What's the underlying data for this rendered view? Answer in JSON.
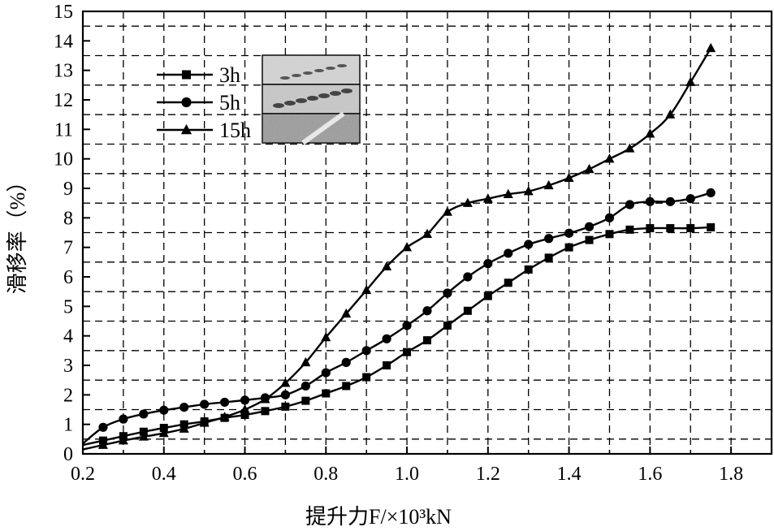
{
  "chart_data": {
    "type": "line",
    "xlabel": "提升力F/×10³kN",
    "ylabel": "滑移率（%）",
    "xlim": [
      0.2,
      1.9
    ],
    "ylim": [
      0,
      15
    ],
    "xticks": [
      "0.2",
      "0.4",
      "0.6",
      "0.8",
      "1.0",
      "1.2",
      "1.4",
      "1.6",
      "1.8"
    ],
    "yticks": [
      "0",
      "1",
      "2",
      "3",
      "4",
      "5",
      "6",
      "7",
      "8",
      "9",
      "10",
      "11",
      "12",
      "13",
      "14",
      "15"
    ],
    "grid": true,
    "grid_style": "dashed",
    "legend_position": "top-left",
    "series": [
      {
        "name": "3h",
        "marker": "square",
        "x": [
          0.2,
          0.25,
          0.3,
          0.35,
          0.4,
          0.45,
          0.5,
          0.55,
          0.6,
          0.65,
          0.7,
          0.75,
          0.8,
          0.85,
          0.9,
          0.95,
          1.0,
          1.05,
          1.1,
          1.15,
          1.2,
          1.25,
          1.3,
          1.35,
          1.4,
          1.45,
          1.5,
          1.55,
          1.6,
          1.65,
          1.7,
          1.75
        ],
        "y": [
          0.3,
          0.45,
          0.6,
          0.75,
          0.88,
          1.0,
          1.1,
          1.22,
          1.32,
          1.45,
          1.6,
          1.8,
          2.05,
          2.3,
          2.6,
          3.0,
          3.45,
          3.85,
          4.35,
          4.85,
          5.35,
          5.8,
          6.25,
          6.65,
          7.0,
          7.25,
          7.45,
          7.6,
          7.65,
          7.65,
          7.65,
          7.68
        ]
      },
      {
        "name": "5h",
        "marker": "circle",
        "x": [
          0.2,
          0.25,
          0.3,
          0.35,
          0.4,
          0.45,
          0.5,
          0.55,
          0.6,
          0.65,
          0.7,
          0.75,
          0.8,
          0.85,
          0.9,
          0.95,
          1.0,
          1.05,
          1.1,
          1.15,
          1.2,
          1.25,
          1.3,
          1.35,
          1.4,
          1.45,
          1.5,
          1.55,
          1.6,
          1.65,
          1.7,
          1.75
        ],
        "y": [
          0.35,
          0.9,
          1.18,
          1.35,
          1.48,
          1.58,
          1.68,
          1.75,
          1.82,
          1.9,
          2.0,
          2.3,
          2.75,
          3.1,
          3.5,
          3.9,
          4.35,
          4.85,
          5.45,
          6.0,
          6.45,
          6.8,
          7.1,
          7.3,
          7.48,
          7.7,
          8.0,
          8.45,
          8.55,
          8.55,
          8.65,
          8.85
        ]
      },
      {
        "name": "15h",
        "marker": "triangle",
        "x": [
          0.2,
          0.25,
          0.3,
          0.35,
          0.4,
          0.45,
          0.5,
          0.55,
          0.6,
          0.65,
          0.7,
          0.75,
          0.8,
          0.85,
          0.9,
          0.95,
          1.0,
          1.05,
          1.1,
          1.15,
          1.2,
          1.25,
          1.3,
          1.35,
          1.4,
          1.45,
          1.5,
          1.55,
          1.6,
          1.65,
          1.7,
          1.75
        ],
        "y": [
          0.15,
          0.3,
          0.45,
          0.58,
          0.7,
          0.85,
          1.05,
          1.25,
          1.5,
          1.85,
          2.4,
          3.1,
          3.95,
          4.75,
          5.55,
          6.35,
          7.0,
          7.45,
          8.2,
          8.5,
          8.65,
          8.8,
          8.9,
          9.1,
          9.35,
          9.65,
          10.0,
          10.35,
          10.85,
          11.5,
          12.6,
          13.75
        ]
      }
    ]
  },
  "inset_images": [
    {
      "name": "3h-surface-image"
    },
    {
      "name": "5h-surface-image"
    },
    {
      "name": "15h-surface-image"
    }
  ]
}
